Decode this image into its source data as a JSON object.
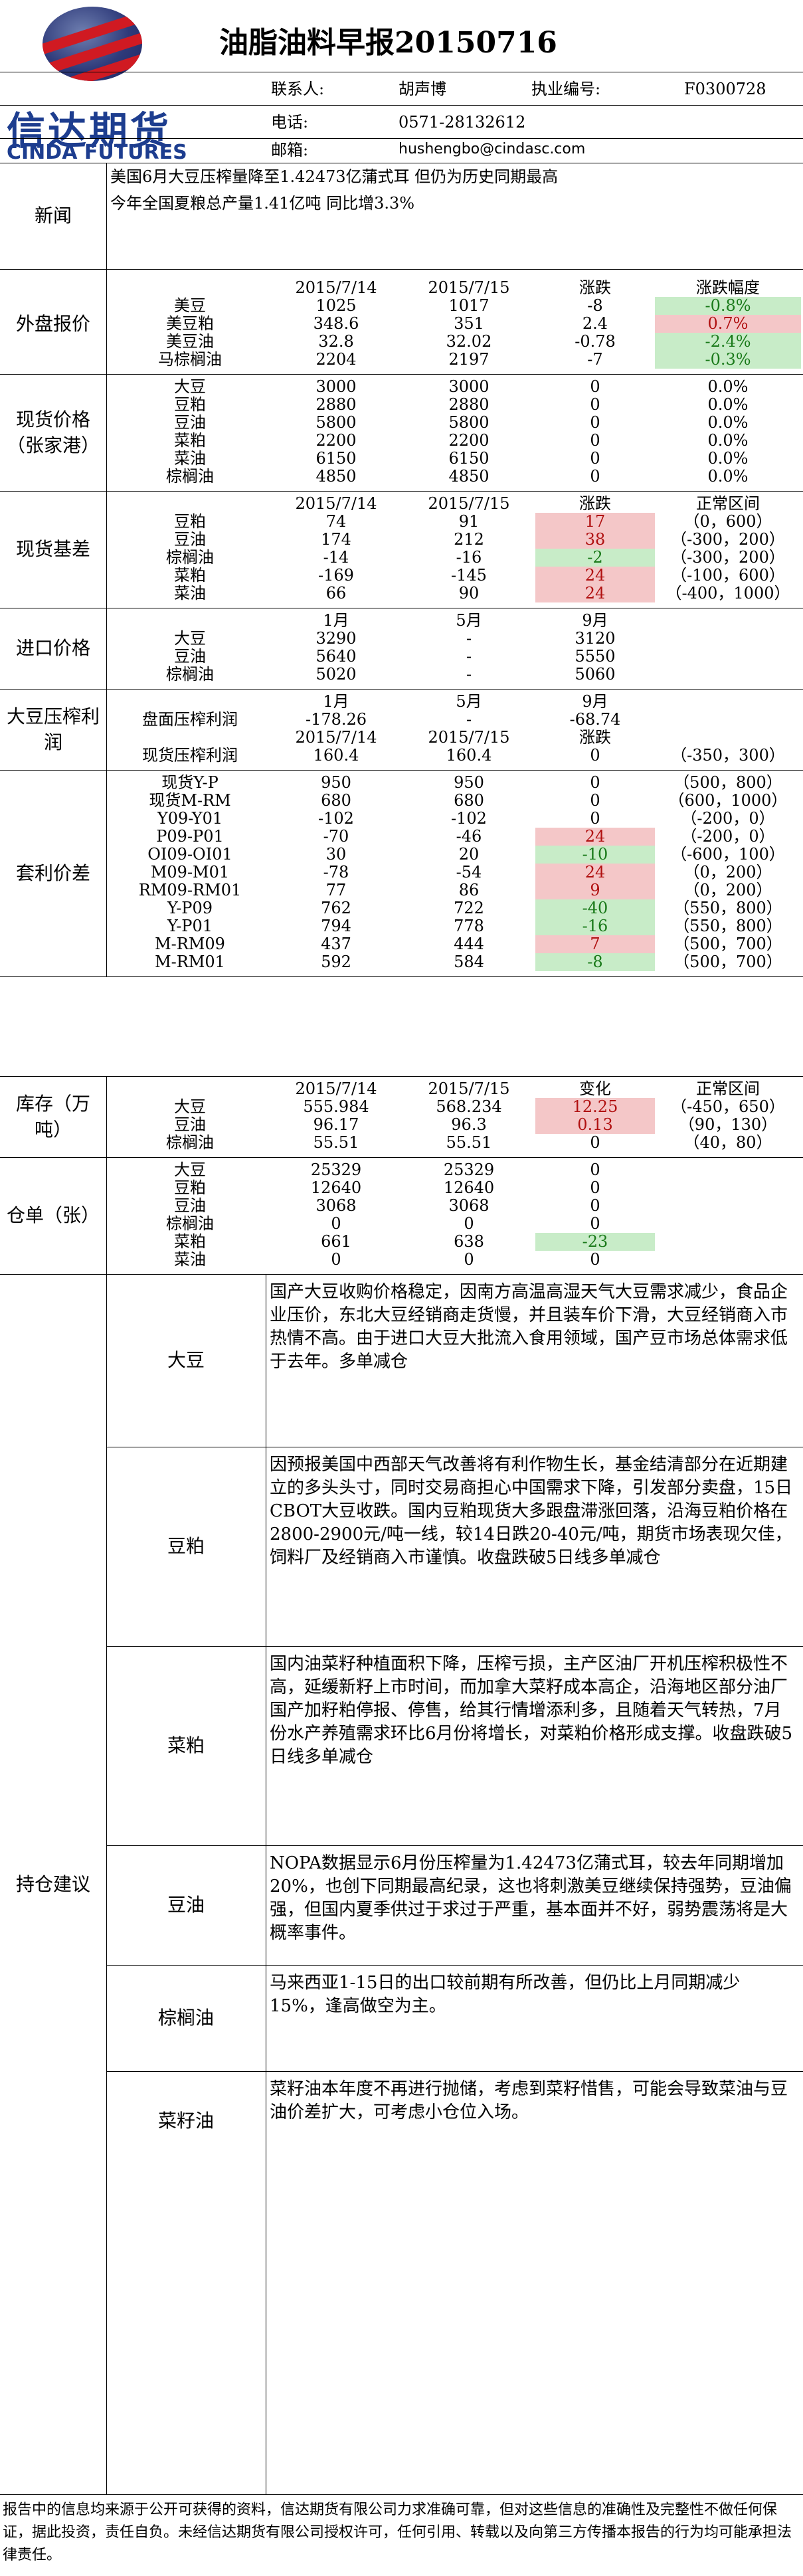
{
  "header": {
    "title": "油脂油料早报20150716",
    "logo_cn": "信达期货",
    "logo_en": "CINDA FUTURES",
    "contact_label": "联系人:",
    "contact": "胡声博",
    "license_label": "执业编号:",
    "license": "F0300728",
    "phone_label": "电话:",
    "phone": "0571-28132612",
    "email_label": "邮箱:",
    "email": "hushengbo@cindasc.com"
  },
  "news": {
    "label": "新闻",
    "lines": [
      "美国6月大豆压榨量降至1.42473亿蒲式耳 但仍为历史同期最高",
      "今年全国夏粮总产量1.41亿吨 同比增3.3%"
    ]
  },
  "foreign": {
    "label": "外盘报价",
    "headers": [
      "2015/7/14",
      "2015/7/15",
      "涨跌",
      "涨跌幅度"
    ],
    "rows": [
      [
        "美豆",
        "1025",
        "1017",
        "-8",
        "-0.8%"
      ],
      [
        "美豆粕",
        "348.6",
        "351",
        "2.4",
        "0.7%"
      ],
      [
        "美豆油",
        "32.8",
        "32.02",
        "-0.78",
        "-2.4%"
      ],
      [
        "马棕榈油",
        "2204",
        "2197",
        "-7",
        "-0.3%"
      ]
    ]
  },
  "spot": {
    "label": "现货价格（张家港）",
    "rows": [
      [
        "大豆",
        "3000",
        "3000",
        "0",
        "0.0%"
      ],
      [
        "豆粕",
        "2880",
        "2880",
        "0",
        "0.0%"
      ],
      [
        "豆油",
        "5800",
        "5800",
        "0",
        "0.0%"
      ],
      [
        "菜粕",
        "2200",
        "2200",
        "0",
        "0.0%"
      ],
      [
        "菜油",
        "6150",
        "6150",
        "0",
        "0.0%"
      ],
      [
        "棕榈油",
        "4850",
        "4850",
        "0",
        "0.0%"
      ]
    ]
  },
  "basis": {
    "label": "现货基差",
    "headers": [
      "2015/7/14",
      "2015/7/15",
      "涨跌",
      "正常区间"
    ],
    "rows": [
      [
        "豆粕",
        "74",
        "91",
        "17",
        "（0，600）"
      ],
      [
        "豆油",
        "174",
        "212",
        "38",
        "（-300，200）"
      ],
      [
        "棕榈油",
        "-14",
        "-16",
        "-2",
        "（-300，200）"
      ],
      [
        "菜粕",
        "-169",
        "-145",
        "24",
        "（-100，600）"
      ],
      [
        "菜油",
        "66",
        "90",
        "24",
        "（-400，1000）"
      ]
    ]
  },
  "import": {
    "label": "进口价格",
    "headers": [
      "1月",
      "5月",
      "9月"
    ],
    "rows": [
      [
        "大豆",
        "3290",
        "-",
        "3120"
      ],
      [
        "豆油",
        "5640",
        "-",
        "5550"
      ],
      [
        "棕榈油",
        "5020",
        "-",
        "5060"
      ]
    ]
  },
  "crush": {
    "label": "大豆压榨利润",
    "headers": [
      "1月",
      "5月",
      "9月"
    ],
    "row1": [
      "盘面压榨利润",
      "-178.26",
      "-",
      "-68.74"
    ],
    "headers2": [
      "2015/7/14",
      "2015/7/15",
      "涨跌"
    ],
    "row2": [
      "现货压榨利润",
      "160.4",
      "160.4",
      "0",
      "（-350，300）"
    ]
  },
  "arb": {
    "label": "套利价差",
    "rows": [
      [
        "现货Y-P",
        "950",
        "950",
        "0",
        "（500，800）"
      ],
      [
        "现货M-RM",
        "680",
        "680",
        "0",
        "（600，1000）"
      ],
      [
        "Y09-Y01",
        "-102",
        "-102",
        "0",
        "（-200，0）"
      ],
      [
        "P09-P01",
        "-70",
        "-46",
        "24",
        "（-200，0）"
      ],
      [
        "OI09-OI01",
        "30",
        "20",
        "-10",
        "（-600，100）"
      ],
      [
        "M09-M01",
        "-78",
        "-54",
        "24",
        "（0，200）"
      ],
      [
        "RM09-RM01",
        "77",
        "86",
        "9",
        "（0，200）"
      ],
      [
        "Y-P09",
        "762",
        "722",
        "-40",
        "（550，800）"
      ],
      [
        "Y-P01",
        "794",
        "778",
        "-16",
        "（550，800）"
      ],
      [
        "M-RM09",
        "437",
        "444",
        "7",
        "（500，700）"
      ],
      [
        "M-RM01",
        "592",
        "584",
        "-8",
        "（500，700）"
      ]
    ]
  },
  "stock": {
    "label": "库存（万吨）",
    "headers": [
      "2015/7/14",
      "2015/7/15",
      "变化",
      "正常区间"
    ],
    "rows": [
      [
        "大豆",
        "555.984",
        "568.234",
        "12.25",
        "（-450，650）"
      ],
      [
        "豆油",
        "96.17",
        "96.3",
        "0.13",
        "（90，130）"
      ],
      [
        "棕榈油",
        "55.51",
        "55.51",
        "0",
        "（40，80）"
      ]
    ]
  },
  "warrant": {
    "label": "仓单（张）",
    "rows": [
      [
        "大豆",
        "25329",
        "25329",
        "0"
      ],
      [
        "豆粕",
        "12640",
        "12640",
        "0"
      ],
      [
        "豆油",
        "3068",
        "3068",
        "0"
      ],
      [
        "棕榈油",
        "0",
        "0",
        "0"
      ],
      [
        "菜粕",
        "661",
        "638",
        "-23"
      ],
      [
        "菜油",
        "0",
        "0",
        "0"
      ]
    ]
  },
  "advice": {
    "label": "持仓建议",
    "items": [
      {
        "name": "大豆",
        "text": "国产大豆收购价格稳定，因南方高温高湿天气大豆需求减少，食品企业压价，东北大豆经销商走货慢，并且装车价下滑，大豆经销商入市热情不高。由于进口大豆大批流入食用领域，国产豆市场总体需求低于去年。多单减仓"
      },
      {
        "name": "豆粕",
        "text": "因预报美国中西部天气改善将有利作物生长，基金结清部分在近期建立的多头头寸，同时交易商担心中国需求下降，引发部分卖盘，15日CBOT大豆收跌。国内豆粕现货大多跟盘滞涨回落，沿海豆粕价格在2800-2900元/吨一线，较14日跌20-40元/吨，期货市场表现欠佳，饲料厂及经销商入市谨慎。收盘跌破5日线多单减仓"
      },
      {
        "name": "菜粕",
        "text": "国内油菜籽种植面积下降，压榨亏损，主产区油厂开机压榨积极性不高，延缓新籽上市时间，而加拿大菜籽成本高企，沿海地区部分油厂国产加籽粕停报、停售，给其行情增添利多，且随着天气转热，7月份水产养殖需求环比6月份将增长，对菜粕价格形成支撑。收盘跌破5日线多单减仓"
      },
      {
        "name": "豆油",
        "text": "NOPA数据显示6月份压榨量为1.42473亿蒲式耳，较去年同期增加20%，也创下同期最高纪录，这也将刺激美豆继续保持强势，豆油偏强，但国内夏季供过于求过于严重，基本面并不好，弱势震荡将是大概率事件。"
      },
      {
        "name": "棕榈油",
        "text": "马来西亚1-15日的出口较前期有所改善，但仍比上月同期减少15%，逢高做空为主。"
      },
      {
        "name": "菜籽油",
        "text": "菜籽油本年度不再进行抛储，考虑到菜籽惜售，可能会导致菜油与豆油价差扩大，可考虑小仓位入场。"
      }
    ]
  },
  "footer": "报告中的信息均来源于公开可获得的资料，信达期货有限公司力求准确可靠，但对这些信息的准确性及完整性不做任何保证，据此投资，责任自负。未经信达期货有限公司授权许可，任何引用、转载以及向第三方传播本报告的行为均可能承担法律责任。"
}
